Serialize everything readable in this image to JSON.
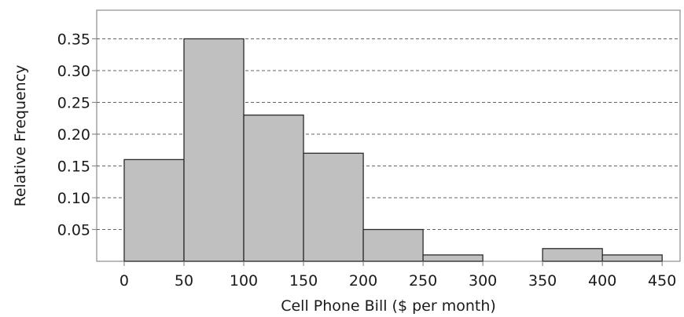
{
  "chart_data": {
    "type": "bar",
    "subtype": "histogram",
    "xlabel": "Cell Phone Bill ($ per month)",
    "ylabel": "Relative Frequency",
    "bins": [
      {
        "start": 0,
        "end": 50,
        "value": 0.16
      },
      {
        "start": 50,
        "end": 100,
        "value": 0.35
      },
      {
        "start": 100,
        "end": 150,
        "value": 0.23
      },
      {
        "start": 150,
        "end": 200,
        "value": 0.17
      },
      {
        "start": 200,
        "end": 250,
        "value": 0.05
      },
      {
        "start": 250,
        "end": 300,
        "value": 0.01
      },
      {
        "start": 300,
        "end": 350,
        "value": 0
      },
      {
        "start": 350,
        "end": 400,
        "value": 0.02
      },
      {
        "start": 400,
        "end": 450,
        "value": 0.01
      }
    ],
    "xticks": [
      "0",
      "50",
      "100",
      "150",
      "200",
      "250",
      "300",
      "350",
      "400",
      "450"
    ],
    "yticks": [
      "0.05",
      "0.10",
      "0.15",
      "0.20",
      "0.25",
      "0.30",
      "0.35"
    ],
    "xlim": [
      -23,
      465
    ],
    "ylim": [
      0,
      0.395
    ],
    "grid": "horizontal dashed",
    "colors": {
      "bar_fill": "#c0c0c0",
      "bar_stroke": "#2b2b2b",
      "grid": "#666666",
      "frame": "#8c8c8c"
    }
  }
}
